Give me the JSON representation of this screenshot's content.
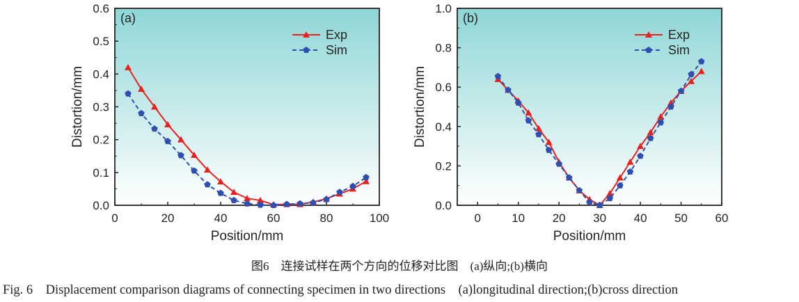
{
  "chart_data": [
    {
      "type": "line",
      "panel_label": "(a)",
      "xlabel": "Position/mm",
      "ylabel": "Distortion/mm",
      "xlim": [
        0,
        100
      ],
      "ylim": [
        0,
        0.6
      ],
      "xticks": [
        0,
        20,
        40,
        60,
        80,
        100
      ],
      "yticks": [
        0.0,
        0.1,
        0.2,
        0.3,
        0.4,
        0.5,
        0.6
      ],
      "legend": "top-right",
      "grid": false,
      "x": [
        5,
        10,
        15,
        20,
        25,
        30,
        35,
        40,
        45,
        50,
        55,
        60,
        65,
        70,
        75,
        80,
        85,
        90,
        95
      ],
      "series": [
        {
          "name": "Exp",
          "color": "#e8211f",
          "marker": "triangle",
          "style": "solid",
          "values": [
            0.42,
            0.354,
            0.3,
            0.246,
            0.2,
            0.153,
            0.108,
            0.072,
            0.04,
            0.021,
            0.015,
            0.002,
            0.003,
            0.003,
            0.01,
            0.02,
            0.035,
            0.05,
            0.073
          ]
        },
        {
          "name": "Sim",
          "color": "#2f4fb0",
          "marker": "pentagon",
          "style": "dashed",
          "values": [
            0.34,
            0.28,
            0.233,
            0.195,
            0.152,
            0.105,
            0.063,
            0.037,
            0.015,
            0.005,
            0.001,
            0,
            0.003,
            0.005,
            0.008,
            0.018,
            0.04,
            0.058,
            0.085
          ]
        }
      ]
    },
    {
      "type": "line",
      "panel_label": "(b)",
      "xlabel": "Position/mm",
      "ylabel": "Distortion/mm",
      "xlim": [
        -5,
        60
      ],
      "ylim": [
        0,
        1.0
      ],
      "xticks": [
        0,
        10,
        20,
        30,
        40,
        50,
        60
      ],
      "yticks": [
        0.0,
        0.2,
        0.4,
        0.6,
        0.8,
        1.0
      ],
      "legend": "top-right",
      "grid": false,
      "x": [
        5,
        7.5,
        10,
        12.5,
        15,
        17.5,
        20,
        22.5,
        25,
        27.5,
        30,
        32.5,
        35,
        37.5,
        40,
        42.5,
        45,
        47.5,
        50,
        52.5,
        55
      ],
      "series": [
        {
          "name": "Exp",
          "color": "#e8211f",
          "marker": "triangle",
          "style": "solid",
          "values": [
            0.64,
            0.585,
            0.53,
            0.47,
            0.39,
            0.32,
            0.22,
            0.14,
            0.075,
            0.03,
            0,
            0.06,
            0.14,
            0.22,
            0.3,
            0.37,
            0.45,
            0.52,
            0.58,
            0.63,
            0.68
          ]
        },
        {
          "name": "Sim",
          "color": "#2f4fb0",
          "marker": "pentagon",
          "style": "dashed",
          "values": [
            0.655,
            0.585,
            0.52,
            0.43,
            0.36,
            0.28,
            0.21,
            0.14,
            0.075,
            0.015,
            0,
            0.035,
            0.1,
            0.17,
            0.25,
            0.34,
            0.42,
            0.5,
            0.58,
            0.665,
            0.73
          ]
        }
      ]
    }
  ],
  "caption": {
    "cn": "图6　连接试样在两个方向的位移对比图　(a)纵向;(b)横向",
    "en": "Fig. 6　Displacement comparison diagrams of connecting specimen in two directions　(a)longitudinal direction;(b)cross direction"
  }
}
